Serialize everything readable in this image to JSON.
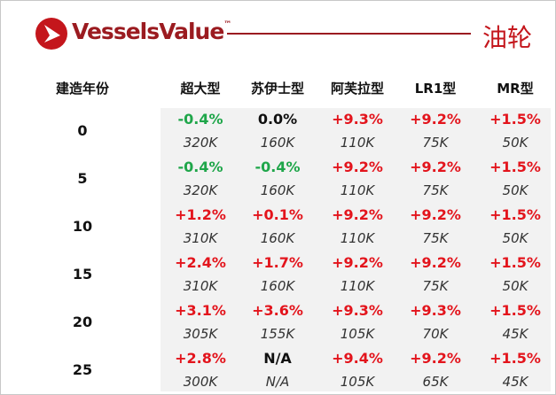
{
  "header": {
    "logo_text": "VesselsValue",
    "trademark": "™",
    "title": "油轮"
  },
  "table": {
    "row_header": "建造年份",
    "columns": [
      "超大型",
      "苏伊士型",
      "阿芙拉型",
      "LR1型",
      "MR型"
    ],
    "rows": [
      {
        "age": "0",
        "cells": [
          {
            "change": "-0.4%",
            "value": "320K",
            "color": "#1fa64a"
          },
          {
            "change": "0.0%",
            "value": "160K",
            "color": "#111111"
          },
          {
            "change": "+9.3%",
            "value": "110K",
            "color": "#e3141c"
          },
          {
            "change": "+9.2%",
            "value": "75K",
            "color": "#e3141c"
          },
          {
            "change": "+1.5%",
            "value": "50K",
            "color": "#e3141c"
          }
        ]
      },
      {
        "age": "5",
        "cells": [
          {
            "change": "-0.4%",
            "value": "320K",
            "color": "#1fa64a"
          },
          {
            "change": "-0.4%",
            "value": "160K",
            "color": "#1fa64a"
          },
          {
            "change": "+9.2%",
            "value": "110K",
            "color": "#e3141c"
          },
          {
            "change": "+9.2%",
            "value": "75K",
            "color": "#e3141c"
          },
          {
            "change": "+1.5%",
            "value": "50K",
            "color": "#e3141c"
          }
        ]
      },
      {
        "age": "10",
        "cells": [
          {
            "change": "+1.2%",
            "value": "310K",
            "color": "#e3141c"
          },
          {
            "change": "+0.1%",
            "value": "160K",
            "color": "#e3141c"
          },
          {
            "change": "+9.2%",
            "value": "110K",
            "color": "#e3141c"
          },
          {
            "change": "+9.2%",
            "value": "75K",
            "color": "#e3141c"
          },
          {
            "change": "+1.5%",
            "value": "50K",
            "color": "#e3141c"
          }
        ]
      },
      {
        "age": "15",
        "cells": [
          {
            "change": "+2.4%",
            "value": "310K",
            "color": "#e3141c"
          },
          {
            "change": "+1.7%",
            "value": "160K",
            "color": "#e3141c"
          },
          {
            "change": "+9.2%",
            "value": "110K",
            "color": "#e3141c"
          },
          {
            "change": "+9.2%",
            "value": "75K",
            "color": "#e3141c"
          },
          {
            "change": "+1.5%",
            "value": "50K",
            "color": "#e3141c"
          }
        ]
      },
      {
        "age": "20",
        "cells": [
          {
            "change": "+3.1%",
            "value": "305K",
            "color": "#e3141c"
          },
          {
            "change": "+3.6%",
            "value": "155K",
            "color": "#e3141c"
          },
          {
            "change": "+9.3%",
            "value": "105K",
            "color": "#e3141c"
          },
          {
            "change": "+9.3%",
            "value": "70K",
            "color": "#e3141c"
          },
          {
            "change": "+1.5%",
            "value": "45K",
            "color": "#e3141c"
          }
        ]
      },
      {
        "age": "25",
        "cells": [
          {
            "change": "+2.8%",
            "value": "300K",
            "color": "#e3141c"
          },
          {
            "change": "N/A",
            "value": "N/A",
            "color": "#111111"
          },
          {
            "change": "+9.4%",
            "value": "105K",
            "color": "#e3141c"
          },
          {
            "change": "+9.2%",
            "value": "65K",
            "color": "#e3141c"
          },
          {
            "change": "+1.5%",
            "value": "45K",
            "color": "#e3141c"
          }
        ]
      }
    ]
  }
}
